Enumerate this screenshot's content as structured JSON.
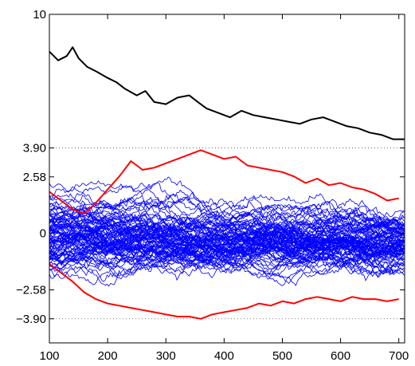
{
  "chart_data": {
    "type": "line",
    "title": "",
    "xlabel": "",
    "ylabel": "",
    "xlim": [
      100,
      710
    ],
    "ylim": [
      -5.0,
      10
    ],
    "grid": false,
    "legend": "none",
    "x_ticks": [
      {
        "value": 100,
        "label": "100"
      },
      {
        "value": 200,
        "label": "200"
      },
      {
        "value": 300,
        "label": "300"
      },
      {
        "value": 400,
        "label": "400"
      },
      {
        "value": 500,
        "label": "500"
      },
      {
        "value": 600,
        "label": "600"
      },
      {
        "value": 700,
        "label": "700"
      }
    ],
    "y_ticks": [
      {
        "value": 10,
        "label": "10"
      },
      {
        "value": 3.9,
        "label": "3.90"
      },
      {
        "value": 2.58,
        "label": "2.58"
      },
      {
        "value": 0,
        "label": "0"
      },
      {
        "value": -2.58,
        "label": "−2.58"
      },
      {
        "value": -3.9,
        "label": "−3.90"
      }
    ],
    "reference_lines": [
      3.9,
      -3.9
    ],
    "colors": {
      "black": "#000000",
      "red": "#ff0000",
      "blue": "#0000ff"
    },
    "series": [
      {
        "color": "black",
        "x": [
          100,
          115,
          130,
          140,
          150,
          165,
          180,
          200,
          215,
          230,
          250,
          265,
          280,
          300,
          320,
          340,
          355,
          370,
          390,
          410,
          430,
          450,
          470,
          490,
          510,
          530,
          550,
          570,
          590,
          610,
          630,
          650,
          670,
          690,
          710
        ],
        "y": [
          8.3,
          7.9,
          8.1,
          8.5,
          8.0,
          7.6,
          7.4,
          7.1,
          6.9,
          6.6,
          6.3,
          6.5,
          6.0,
          5.9,
          6.2,
          6.3,
          6.0,
          5.7,
          5.5,
          5.3,
          5.6,
          5.4,
          5.3,
          5.2,
          5.1,
          5.0,
          5.2,
          5.3,
          5.1,
          4.9,
          4.8,
          4.6,
          4.5,
          4.3,
          4.3
        ]
      },
      {
        "color": "red",
        "x": [
          100,
          120,
          140,
          160,
          180,
          200,
          220,
          240,
          260,
          280,
          300,
          320,
          340,
          360,
          380,
          400,
          420,
          440,
          460,
          480,
          500,
          520,
          540,
          560,
          580,
          600,
          620,
          640,
          660,
          680,
          700
        ],
        "y": [
          1.9,
          1.5,
          1.1,
          0.9,
          1.4,
          2.0,
          2.6,
          3.3,
          2.9,
          3.0,
          3.2,
          3.4,
          3.6,
          3.8,
          3.6,
          3.4,
          3.5,
          3.1,
          3.0,
          2.9,
          2.8,
          2.6,
          2.3,
          2.5,
          2.2,
          2.3,
          2.1,
          2.0,
          1.8,
          1.5,
          1.6
        ]
      },
      {
        "color": "red",
        "x": [
          100,
          120,
          140,
          160,
          180,
          200,
          220,
          240,
          260,
          280,
          300,
          320,
          340,
          360,
          380,
          400,
          420,
          440,
          460,
          480,
          500,
          520,
          540,
          560,
          580,
          600,
          620,
          640,
          660,
          680,
          700
        ],
        "y": [
          -1.4,
          -1.8,
          -2.2,
          -2.7,
          -3.0,
          -3.2,
          -3.3,
          -3.4,
          -3.5,
          -3.6,
          -3.7,
          -3.8,
          -3.8,
          -3.9,
          -3.7,
          -3.6,
          -3.5,
          -3.4,
          -3.2,
          -3.3,
          -3.1,
          -3.2,
          -3.0,
          -2.9,
          -3.0,
          -3.1,
          -2.9,
          -3.0,
          -3.0,
          -3.1,
          -3.0
        ]
      }
    ],
    "random_band": {
      "color": "blue",
      "count": 90,
      "x_start": 100,
      "x_end": 710,
      "typical_range": [
        -3.9,
        3.5
      ]
    }
  }
}
